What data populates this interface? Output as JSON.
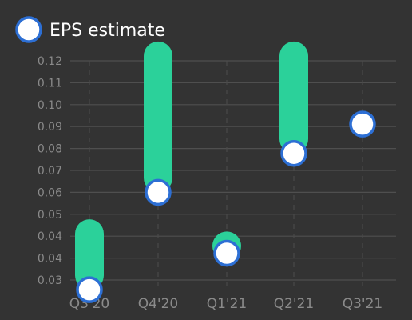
{
  "chart_data": {
    "type": "range-dot",
    "legend": {
      "label": "EPS estimate",
      "placement": "top-left"
    },
    "categories": [
      "Q3'20",
      "Q4'20",
      "Q1'21",
      "Q2'21",
      "Q3'21"
    ],
    "y_ticks": [
      "0.03",
      "0.04",
      "0.04",
      "0.05",
      "0.06",
      "0.07",
      "0.08",
      "0.09",
      "0.10",
      "0.11",
      "0.12"
    ],
    "ylim": [
      0.025,
      0.125
    ],
    "series": [
      {
        "name": "EPS estimate",
        "values": [
          0.026,
          0.066,
          0.041,
          0.082,
          0.094
        ]
      }
    ],
    "ranges": [
      {
        "high": 0.049,
        "low": 0.026
      },
      {
        "high": 0.122,
        "low": 0.066
      },
      {
        "high": 0.044,
        "low": 0.041
      },
      {
        "high": 0.122,
        "low": 0.082
      },
      null
    ],
    "grid": true,
    "colors": {
      "background": "#333333",
      "grid": "#4f4f4f",
      "range_bar": "#2bd19a",
      "marker_fill": "#ffffff",
      "marker_stroke": "#2d6fd4",
      "tick_text": "#8a8a8a",
      "legend_text": "#ffffff"
    }
  }
}
